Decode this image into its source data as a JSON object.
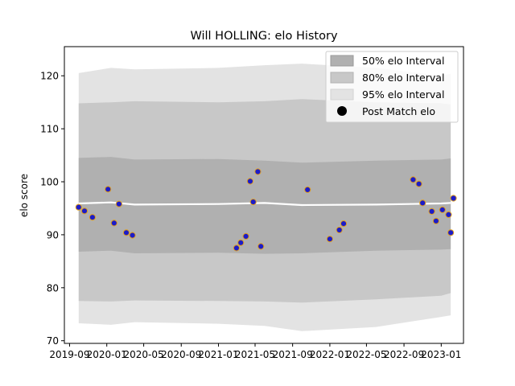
{
  "chart_data": {
    "type": "line",
    "title": "Will HOLLING: elo History",
    "xlabel": "",
    "ylabel": "elo score",
    "xlim": [
      "2019-08-15",
      "2023-03-15"
    ],
    "ylim": [
      69.5,
      125.5
    ],
    "x_ticks": [
      "2019-09",
      "2020-01",
      "2020-05",
      "2020-09",
      "2021-01",
      "2021-05",
      "2021-09",
      "2022-01",
      "2022-05",
      "2022-09",
      "2023-01"
    ],
    "y_ticks": [
      70,
      80,
      90,
      100,
      110,
      120
    ],
    "legend": {
      "position": "top-right",
      "entries": [
        "50% elo Interval",
        "80% elo Interval",
        "95% elo Interval",
        "Post Match elo"
      ]
    },
    "colors": {
      "band50": "#b0b0b0",
      "band80": "#c8c8c8",
      "band95": "#e3e3e3",
      "median_line": "#ffffff",
      "point_fill": "#1c1cc8",
      "point_edge": "#e0a020"
    },
    "bands": {
      "x": [
        "2019-10-01",
        "2020-01-15",
        "2020-04-01",
        "2021-01-01",
        "2021-06-01",
        "2021-10-01",
        "2022-06-01",
        "2023-01-01",
        "2023-02-01"
      ],
      "p95_low": [
        73.3,
        73.0,
        73.5,
        73.2,
        72.8,
        71.8,
        72.6,
        74.5,
        74.8
      ],
      "p95_high": [
        120.5,
        121.5,
        121.2,
        121.5,
        122.0,
        122.3,
        121.5,
        120.0,
        120.4
      ],
      "p80_low": [
        77.5,
        77.4,
        77.6,
        77.5,
        77.4,
        77.2,
        77.8,
        78.5,
        79.0
      ],
      "p80_high": [
        114.8,
        115.0,
        115.2,
        115.0,
        115.2,
        115.6,
        115.0,
        114.8,
        114.6
      ],
      "p50_low": [
        86.8,
        87.0,
        86.5,
        86.6,
        86.4,
        86.5,
        87.0,
        87.2,
        87.3
      ],
      "p50_high": [
        104.5,
        104.7,
        104.2,
        104.3,
        104.0,
        103.6,
        104.0,
        104.2,
        104.4
      ],
      "median": [
        95.9,
        96.1,
        95.7,
        95.8,
        96.0,
        95.6,
        95.7,
        95.9,
        96.0
      ]
    },
    "series": [
      {
        "x": [
          "2019-10-01",
          "2019-10-20",
          "2019-11-15",
          "2020-01-05",
          "2020-01-25",
          "2020-02-10",
          "2020-03-05",
          "2020-03-25",
          "2021-03-01",
          "2021-03-15",
          "2021-04-01",
          "2021-04-15",
          "2021-04-25",
          "2021-05-10",
          "2021-05-20",
          "2021-10-20",
          "2022-01-01",
          "2022-02-01",
          "2022-02-15",
          "2022-10-01",
          "2022-10-20",
          "2022-11-01",
          "2022-12-01",
          "2022-12-15",
          "2023-01-05",
          "2023-01-25",
          "2023-02-01",
          "2023-02-10"
        ],
        "y": [
          95.2,
          94.5,
          93.3,
          98.6,
          92.2,
          95.8,
          90.4,
          89.9,
          87.5,
          88.5,
          89.7,
          100.1,
          96.2,
          101.9,
          87.8,
          98.5,
          89.2,
          90.9,
          92.1,
          100.4,
          99.6,
          96.0,
          94.4,
          92.6,
          94.7,
          93.8,
          90.4,
          96.9
        ]
      }
    ]
  }
}
